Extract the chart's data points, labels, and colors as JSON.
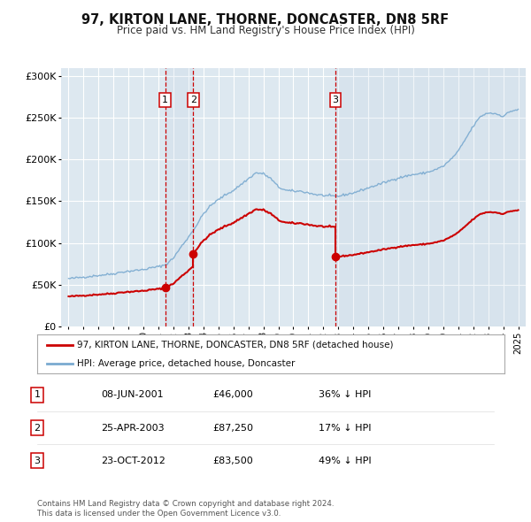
{
  "title": "97, KIRTON LANE, THORNE, DONCASTER, DN8 5RF",
  "subtitle": "Price paid vs. HM Land Registry's House Price Index (HPI)",
  "background_color": "#ffffff",
  "plot_bg_color": "#dde8f0",
  "grid_color": "#ffffff",
  "sale_color": "#cc0000",
  "hpi_color": "#7aaad0",
  "vline_color": "#cc0000",
  "transactions": [
    {
      "date": 2001.44,
      "price": 46000,
      "label": "1"
    },
    {
      "date": 2003.32,
      "price": 87250,
      "label": "2"
    },
    {
      "date": 2012.81,
      "price": 83500,
      "label": "3"
    }
  ],
  "legend_entries": [
    "97, KIRTON LANE, THORNE, DONCASTER, DN8 5RF (detached house)",
    "HPI: Average price, detached house, Doncaster"
  ],
  "table_rows": [
    {
      "label": "1",
      "date": "08-JUN-2001",
      "price": "£46,000",
      "hpi": "36% ↓ HPI"
    },
    {
      "label": "2",
      "date": "25-APR-2003",
      "price": "£87,250",
      "hpi": "17% ↓ HPI"
    },
    {
      "label": "3",
      "date": "23-OCT-2012",
      "price": "£83,500",
      "hpi": "49% ↓ HPI"
    }
  ],
  "footnote": "Contains HM Land Registry data © Crown copyright and database right 2024.\nThis data is licensed under the Open Government Licence v3.0.",
  "ylim": [
    0,
    310000
  ],
  "xlim": [
    1994.5,
    2025.5
  ],
  "yticks": [
    0,
    50000,
    100000,
    150000,
    200000,
    250000,
    300000
  ],
  "ytick_labels": [
    "£0",
    "£50K",
    "£100K",
    "£150K",
    "£200K",
    "£250K",
    "£300K"
  ]
}
